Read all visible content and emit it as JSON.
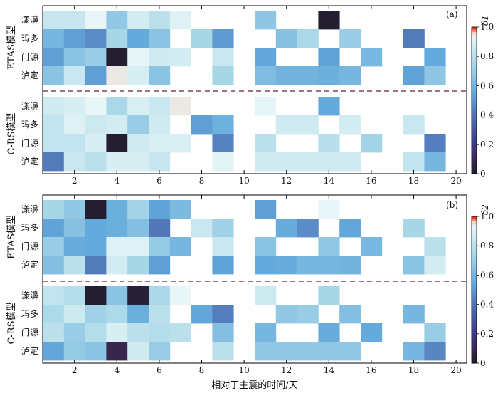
{
  "chart_data": [
    {
      "panel_label": "(a)",
      "type": "heatmap",
      "colorbar_label": "δ1",
      "colorbar_ticks": [
        "1.0",
        "0.8",
        "0.6",
        "0.4",
        "0.2",
        "0"
      ],
      "x_ticks": [
        "2",
        "4",
        "6",
        "8",
        "10",
        "12",
        "14",
        "16",
        "18",
        "20"
      ],
      "groups": [
        {
          "label": "ETAS模型",
          "rows": [
            "漾濞",
            "玛多",
            "门源",
            "泸定"
          ],
          "values": [
            [
              0.83,
              0.83,
              0.93,
              0.68,
              0.87,
              0.8,
              0.9,
              null,
              null,
              null,
              0.67,
              null,
              null,
              0.02,
              null,
              null,
              null,
              null,
              null,
              null
            ],
            [
              0.6,
              0.52,
              0.47,
              0.74,
              0.55,
              0.66,
              null,
              0.74,
              0.51,
              null,
              null,
              0.65,
              0.75,
              null,
              0.7,
              null,
              null,
              0.42,
              null,
              null
            ],
            [
              0.52,
              0.66,
              0.7,
              0.02,
              0.92,
              0.86,
              0.87,
              null,
              0.84,
              null,
              0.54,
              null,
              null,
              0.53,
              null,
              0.61,
              null,
              null,
              0.55,
              null
            ],
            [
              0.66,
              0.84,
              0.52,
              0.94,
              0.88,
              0.66,
              null,
              null,
              0.74,
              null,
              0.63,
              0.59,
              0.59,
              0.57,
              0.6,
              null,
              null,
              0.53,
              0.67,
              null
            ]
          ]
        },
        {
          "label": "C-RS模型",
          "rows": [
            "漾濞",
            "玛多",
            "门源",
            "泸定"
          ],
          "values": [
            [
              0.86,
              0.88,
              0.93,
              0.75,
              0.89,
              0.84,
              0.94,
              null,
              null,
              null,
              0.92,
              null,
              null,
              0.55,
              null,
              null,
              null,
              null,
              null,
              null
            ],
            [
              0.82,
              0.9,
              0.85,
              0.87,
              0.7,
              0.86,
              null,
              0.52,
              0.58,
              null,
              null,
              0.86,
              0.86,
              null,
              0.87,
              null,
              null,
              0.84,
              null,
              null
            ],
            [
              0.82,
              0.82,
              0.88,
              0.02,
              0.86,
              0.89,
              0.89,
              null,
              0.44,
              null,
              0.8,
              null,
              null,
              0.79,
              null,
              0.73,
              null,
              null,
              0.43,
              null
            ],
            [
              0.42,
              0.84,
              0.8,
              0.88,
              0.88,
              0.83,
              null,
              null,
              0.91,
              null,
              0.86,
              0.86,
              0.86,
              0.86,
              0.86,
              null,
              null,
              0.82,
              0.6,
              null
            ]
          ]
        }
      ]
    },
    {
      "panel_label": "(b)",
      "type": "heatmap",
      "colorbar_label": "δ2",
      "colorbar_ticks": [
        "1.0",
        "0.8",
        "0.6",
        "0.4",
        "0.2",
        "0"
      ],
      "x_ticks": [
        "2",
        "4",
        "6",
        "8",
        "10",
        "12",
        "14",
        "16",
        "18",
        "20"
      ],
      "x_label": "相对于主震的时间/天",
      "groups": [
        {
          "label": "ETAS模型",
          "rows": [
            "漾濞",
            "玛多",
            "门源",
            "泸定"
          ],
          "values": [
            [
              0.74,
              0.68,
              0.02,
              0.57,
              0.73,
              0.53,
              0.62,
              null,
              null,
              null,
              0.52,
              null,
              null,
              0.93,
              null,
              null,
              null,
              null,
              null,
              null
            ],
            [
              0.53,
              0.65,
              0.55,
              0.57,
              0.64,
              0.41,
              null,
              0.84,
              0.72,
              null,
              null,
              0.56,
              0.47,
              null,
              0.54,
              null,
              null,
              0.74,
              null,
              null
            ],
            [
              0.7,
              0.56,
              0.55,
              0.9,
              0.9,
              0.69,
              0.6,
              null,
              0.84,
              null,
              0.66,
              null,
              null,
              0.68,
              null,
              0.61,
              null,
              null,
              0.8,
              null
            ],
            [
              0.64,
              0.8,
              0.42,
              0.87,
              0.74,
              0.52,
              null,
              null,
              0.53,
              null,
              0.55,
              0.56,
              0.6,
              0.6,
              0.59,
              null,
              null,
              0.66,
              0.87,
              null
            ]
          ]
        },
        {
          "label": "C-RS模型",
          "rows": [
            "漾濞",
            "玛多",
            "门源",
            "泸定"
          ],
          "values": [
            [
              0.82,
              0.78,
              0.02,
              0.66,
              0.03,
              0.75,
              0.93,
              null,
              null,
              null,
              0.85,
              null,
              null,
              0.74,
              null,
              null,
              null,
              null,
              null,
              null
            ],
            [
              0.76,
              0.85,
              0.72,
              0.76,
              0.57,
              0.8,
              null,
              0.54,
              0.43,
              null,
              null,
              0.68,
              0.7,
              null,
              0.64,
              null,
              null,
              0.6,
              null,
              null
            ],
            [
              0.8,
              0.7,
              0.78,
              0.88,
              0.8,
              0.78,
              0.8,
              null,
              0.64,
              null,
              0.6,
              null,
              null,
              0.56,
              null,
              0.55,
              null,
              null,
              0.7,
              null
            ],
            [
              0.54,
              0.69,
              0.66,
              0.08,
              0.86,
              0.7,
              null,
              null,
              0.8,
              null,
              0.68,
              0.68,
              0.68,
              0.68,
              0.68,
              null,
              null,
              0.6,
              0.45,
              null
            ]
          ]
        }
      ]
    }
  ]
}
